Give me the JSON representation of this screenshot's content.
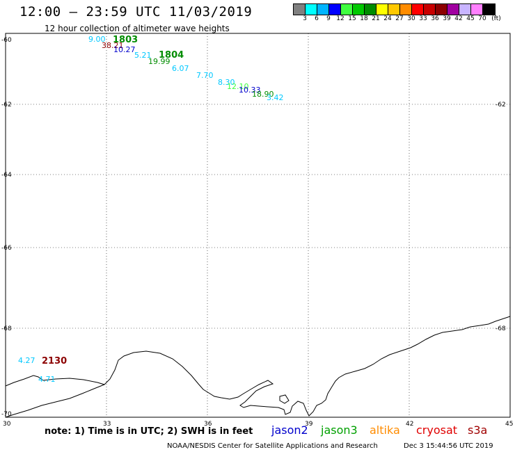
{
  "title": "12:00 — 23:59 UTC 11/03/2019",
  "subtitle": "12 hour collection of altimeter wave heights",
  "legend": {
    "swatches": [
      "#808080",
      "#00ffff",
      "#00b4ff",
      "#0000ff",
      "#40ff40",
      "#00c800",
      "#008c00",
      "#ffff00",
      "#ffc800",
      "#ff8c00",
      "#ff0000",
      "#c80000",
      "#8c0000",
      "#a000a0",
      "#c8b4ff",
      "#ff80ff",
      "#000000"
    ],
    "labels": [
      "3",
      "6",
      "9",
      "12",
      "15",
      "18",
      "21",
      "24",
      "27",
      "30",
      "33",
      "36",
      "39",
      "42",
      "45",
      "70"
    ],
    "unit": "(ft)"
  },
  "axes": {
    "lon_ticks": [
      "30",
      "33",
      "36",
      "39",
      "42",
      "45"
    ],
    "lat_ticks": [
      "-60",
      "-62",
      "-64",
      "-66",
      "-68",
      "-70"
    ]
  },
  "observations": [
    {
      "label": "9.00",
      "color": "#00c8ff"
    },
    {
      "label": "1803",
      "color": "#008c00"
    },
    {
      "label": "38.21",
      "color": "#8c0000"
    },
    {
      "label": "10.27",
      "color": "#0000cc"
    },
    {
      "label": "5.21",
      "color": "#00c8ff"
    },
    {
      "label": "1804",
      "color": "#008c00"
    },
    {
      "label": "19.99",
      "color": "#008c00"
    },
    {
      "label": "6.07",
      "color": "#00c8ff"
    },
    {
      "label": "7.70",
      "color": "#00c8ff"
    },
    {
      "label": "8.30",
      "color": "#00c8ff"
    },
    {
      "label": "12.10",
      "color": "#40ff40"
    },
    {
      "label": "10.33",
      "color": "#0000cc"
    },
    {
      "label": "18.90",
      "color": "#008c00"
    },
    {
      "label": "3.42",
      "color": "#00c8ff"
    },
    {
      "label": "4.27",
      "color": "#00c8ff"
    },
    {
      "label": "2130",
      "color": "#8c0000"
    },
    {
      "label": "4.71",
      "color": "#00c8ff"
    }
  ],
  "note": "note: 1) Time is in UTC; 2) SWH is in feet",
  "missions": [
    {
      "name": "jason2",
      "color": "#0000cc"
    },
    {
      "name": "jason3",
      "color": "#00a000"
    },
    {
      "name": "altika",
      "color": "#ff8c00"
    },
    {
      "name": "cryosat",
      "color": "#e00000"
    },
    {
      "name": "s3a",
      "color": "#a00000"
    }
  ],
  "credit": "NOAA/NESDIS Center for Satellite Applications and Research",
  "timestamp": "Dec  3 15:44:56 UTC 2019"
}
